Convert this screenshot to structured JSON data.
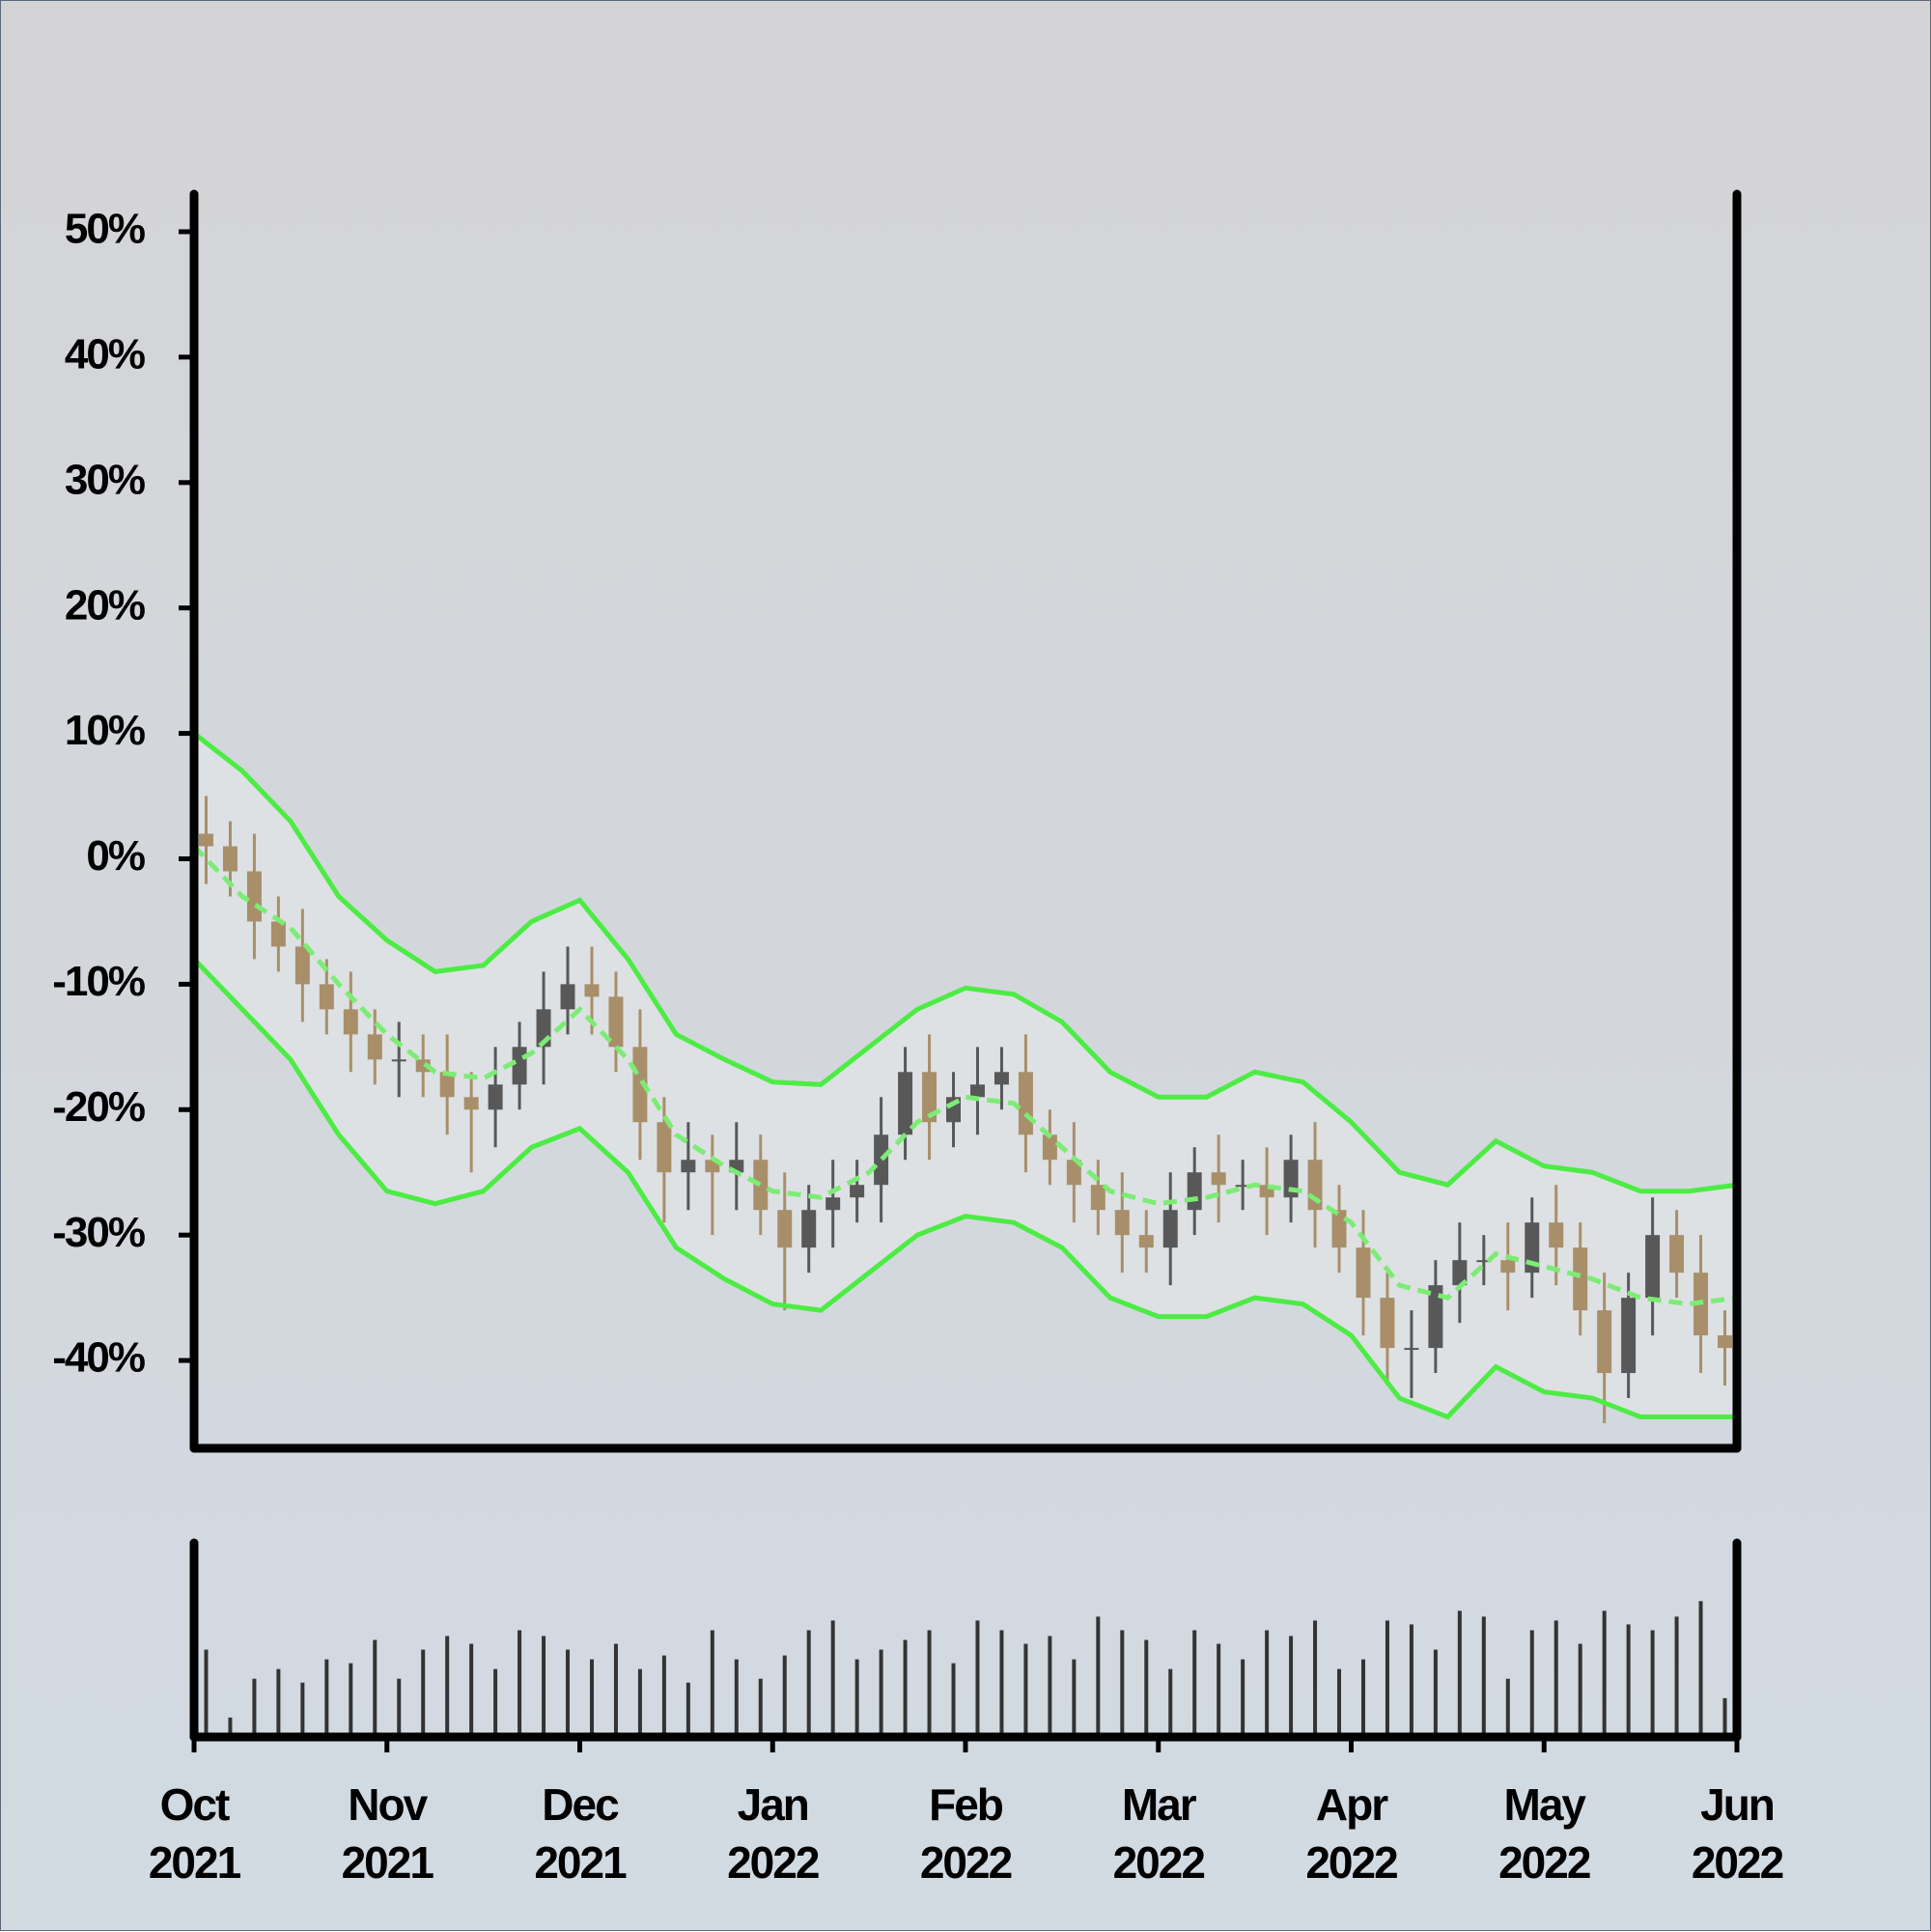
{
  "chart_data": [
    {
      "type": "candlestick",
      "x": [
        0.0625,
        0.1875,
        0.3125,
        0.4375,
        0.5625,
        0.6875,
        0.8125,
        0.9375,
        1.0625,
        1.1875,
        1.3125,
        1.4375,
        1.5625,
        1.6875,
        1.8125,
        1.9375,
        2.0625,
        2.1875,
        2.3125,
        2.4375,
        2.5625,
        2.6875,
        2.8125,
        2.9375,
        3.0625,
        3.1875,
        3.3125,
        3.4375,
        3.5625,
        3.6875,
        3.8125,
        3.9375,
        4.0625,
        4.1875,
        4.3125,
        4.4375,
        4.5625,
        4.6875,
        4.8125,
        4.9375,
        5.0625,
        5.1875,
        5.3125,
        5.4375,
        5.5625,
        5.6875,
        5.8125,
        5.9375,
        6.0625,
        6.1875,
        6.3125,
        6.4375,
        6.5625,
        6.6875,
        6.8125,
        6.9375,
        7.0625,
        7.1875,
        7.3125,
        7.4375,
        7.5625,
        7.6875,
        7.8125,
        7.9375
      ],
      "open": [
        2,
        1,
        -1,
        -5,
        -7,
        -10,
        -12,
        -14,
        -16,
        -16,
        -17,
        -19,
        -20,
        -18,
        -15,
        -12,
        -10,
        -11,
        -15,
        -21,
        -25,
        -24,
        -25,
        -24,
        -28,
        -31,
        -28,
        -27,
        -26,
        -22,
        -17,
        -21,
        -19,
        -18,
        -17,
        -22,
        -24,
        -26,
        -28,
        -30,
        -31,
        -28,
        -25,
        -26,
        -26,
        -27,
        -24,
        -28,
        -31,
        -35,
        -39,
        -39,
        -34,
        -32,
        -32,
        -33,
        -29,
        -31,
        -36,
        -41,
        -35,
        -30,
        -33,
        -38
      ],
      "high": [
        5,
        3,
        2,
        -3,
        -4,
        -8,
        -9,
        -12,
        -13,
        -14,
        -14,
        -17,
        -15,
        -13,
        -9,
        -7,
        -7,
        -9,
        -12,
        -19,
        -21,
        -22,
        -21,
        -22,
        -25,
        -26,
        -24,
        -24,
        -19,
        -15,
        -14,
        -17,
        -15,
        -15,
        -14,
        -20,
        -21,
        -24,
        -25,
        -28,
        -25,
        -23,
        -22,
        -24,
        -23,
        -22,
        -21,
        -26,
        -28,
        -33,
        -36,
        -32,
        -29,
        -30,
        -29,
        -27,
        -26,
        -29,
        -33,
        -33,
        -27,
        -28,
        -30,
        -36
      ],
      "low": [
        -2,
        -3,
        -8,
        -9,
        -13,
        -14,
        -17,
        -18,
        -19,
        -19,
        -22,
        -25,
        -23,
        -20,
        -18,
        -14,
        -14,
        -17,
        -24,
        -29,
        -28,
        -30,
        -28,
        -30,
        -36,
        -33,
        -31,
        -29,
        -29,
        -24,
        -24,
        -23,
        -22,
        -20,
        -25,
        -26,
        -29,
        -30,
        -33,
        -33,
        -34,
        -30,
        -29,
        -28,
        -30,
        -29,
        -31,
        -33,
        -38,
        -42,
        -43,
        -41,
        -37,
        -34,
        -36,
        -35,
        -34,
        -38,
        -45,
        -43,
        -38,
        -35,
        -41,
        -42
      ],
      "close": [
        1,
        -1,
        -5,
        -7,
        -10,
        -12,
        -14,
        -16,
        -16,
        -17,
        -19,
        -20,
        -18,
        -15,
        -12,
        -10,
        -11,
        -15,
        -21,
        -25,
        -24,
        -25,
        -24,
        -28,
        -31,
        -28,
        -27,
        -26,
        -22,
        -17,
        -21,
        -19,
        -18,
        -17,
        -22,
        -24,
        -26,
        -28,
        -30,
        -31,
        -28,
        -25,
        -26,
        -26,
        -27,
        -24,
        -28,
        -31,
        -35,
        -39,
        -39,
        -34,
        -32,
        -32,
        -33,
        -29,
        -31,
        -36,
        -41,
        -35,
        -30,
        -33,
        -38,
        -39
      ],
      "colors": {
        "up": "#585858",
        "down": "#a88f6a"
      },
      "bands": {
        "x": [
          0,
          0.25,
          0.5,
          0.75,
          1,
          1.25,
          1.5,
          1.75,
          2,
          2.25,
          2.5,
          2.75,
          3,
          3.25,
          3.5,
          3.75,
          4,
          4.25,
          4.5,
          4.75,
          5,
          5.25,
          5.5,
          5.75,
          6,
          6.25,
          6.5,
          6.75,
          7,
          7.25,
          7.5,
          7.75,
          8
        ],
        "fill": "#dde1e4",
        "series": [
          {
            "color": "#4cec44",
            "dashed": false,
            "values": [
              10,
              7,
              3,
              -3,
              -6.5,
              -9,
              -8.5,
              -5,
              -3.3,
              -8,
              -14,
              -16,
              -17.8,
              -18,
              -15,
              -12,
              -10.3,
              -10.8,
              -13,
              -17,
              -19,
              -19,
              -17,
              -17.8,
              -21,
              -25,
              -26,
              -22.5,
              -24.5,
              -25,
              -26.5,
              -26.5,
              -26
            ]
          },
          {
            "color": "#7cec74",
            "dashed": true,
            "values": [
              1,
              -3,
              -5.5,
              -10,
              -14,
              -17,
              -17.5,
              -15.5,
              -12,
              -16,
              -22,
              -24.5,
              -26.5,
              -27,
              -25,
              -21,
              -19,
              -19.5,
              -23,
              -26.5,
              -27.5,
              -27,
              -26,
              -26.5,
              -29,
              -34,
              -35,
              -31.5,
              -32.5,
              -33.5,
              -35,
              -35.5,
              -35
            ]
          },
          {
            "color": "#4cec44",
            "dashed": false,
            "values": [
              -8,
              -12,
              -16,
              -22,
              -26.5,
              -27.5,
              -26.5,
              -23,
              -21.5,
              -25,
              -31,
              -33.5,
              -35.5,
              -36,
              -33,
              -30,
              -28.5,
              -29,
              -31,
              -35,
              -36.5,
              -36.5,
              -35,
              -35.5,
              -38,
              -43,
              -44.5,
              -40.5,
              -42.5,
              -43,
              -44.5,
              -44.5,
              -44.5
            ]
          }
        ]
      },
      "xlim": [
        0,
        8
      ],
      "ylim": [
        -47,
        53
      ],
      "yticks": [
        {
          "value": -40,
          "label": "-40%"
        },
        {
          "value": -30,
          "label": "-30%"
        },
        {
          "value": -20,
          "label": "-20%"
        },
        {
          "value": -10,
          "label": "-10%"
        },
        {
          "value": 0,
          "label": "0%"
        },
        {
          "value": 10,
          "label": "10%"
        },
        {
          "value": 20,
          "label": "20%"
        },
        {
          "value": 30,
          "label": "30%"
        },
        {
          "value": 40,
          "label": "40%"
        },
        {
          "value": 50,
          "label": "50%"
        }
      ]
    },
    {
      "type": "bar",
      "x": [
        0.0625,
        0.1875,
        0.3125,
        0.4375,
        0.5625,
        0.6875,
        0.8125,
        0.9375,
        1.0625,
        1.1875,
        1.3125,
        1.4375,
        1.5625,
        1.6875,
        1.8125,
        1.9375,
        2.0625,
        2.1875,
        2.3125,
        2.4375,
        2.5625,
        2.6875,
        2.8125,
        2.9375,
        3.0625,
        3.1875,
        3.3125,
        3.4375,
        3.5625,
        3.6875,
        3.8125,
        3.9375,
        4.0625,
        4.1875,
        4.3125,
        4.4375,
        4.5625,
        4.6875,
        4.8125,
        4.9375,
        5.0625,
        5.1875,
        5.3125,
        5.4375,
        5.5625,
        5.6875,
        5.8125,
        5.9375,
        6.0625,
        6.1875,
        6.3125,
        6.4375,
        6.5625,
        6.6875,
        6.8125,
        6.9375,
        7.0625,
        7.1875,
        7.3125,
        7.4375,
        7.5625,
        7.6875,
        7.8125,
        7.9375
      ],
      "values": [
        45,
        10,
        30,
        35,
        28,
        40,
        38,
        50,
        30,
        45,
        52,
        48,
        35,
        55,
        52,
        45,
        40,
        48,
        35,
        42,
        28,
        55,
        40,
        30,
        42,
        55,
        60,
        40,
        45,
        50,
        55,
        38,
        60,
        55,
        48,
        52,
        40,
        62,
        55,
        50,
        35,
        55,
        48,
        40,
        55,
        52,
        60,
        35,
        40,
        60,
        58,
        45,
        65,
        62,
        30,
        55,
        60,
        48,
        65,
        58,
        55,
        62,
        70,
        20
      ],
      "color": "#333333",
      "xlim": [
        0,
        8
      ],
      "ylim": [
        0,
        100
      ],
      "xticks": [
        {
          "value": 0,
          "label": "Oct\n2021"
        },
        {
          "value": 1,
          "label": "Nov\n2021"
        },
        {
          "value": 2,
          "label": "Dec\n2021"
        },
        {
          "value": 3,
          "label": "Jan\n2022"
        },
        {
          "value": 4,
          "label": "Feb\n2022"
        },
        {
          "value": 5,
          "label": "Mar\n2022"
        },
        {
          "value": 6,
          "label": "Apr\n2022"
        },
        {
          "value": 7,
          "label": "May\n2022"
        },
        {
          "value": 8,
          "label": "Jun\n2022"
        }
      ]
    }
  ]
}
